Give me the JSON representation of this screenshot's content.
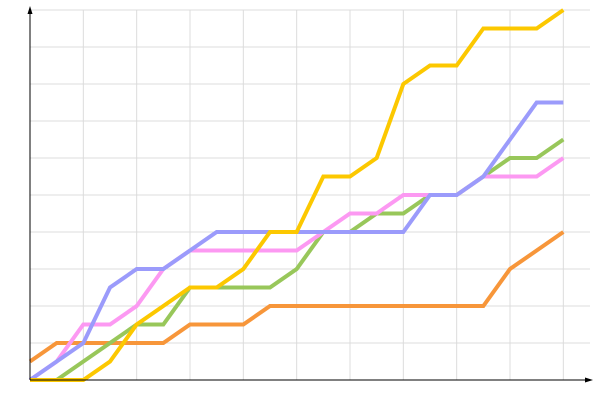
{
  "chart_data": {
    "type": "line",
    "x": [
      0,
      1,
      2,
      3,
      4,
      5,
      6,
      7,
      8,
      9,
      10,
      11,
      12,
      13,
      14,
      15,
      16,
      17,
      18,
      19,
      20
    ],
    "series": [
      {
        "color": "#f7963a",
        "values": [
          0.5,
          1,
          1,
          1,
          1,
          1,
          1.5,
          1.5,
          1.5,
          2,
          2,
          2,
          2,
          2,
          2,
          2,
          2,
          2,
          3,
          3.5,
          4
        ]
      },
      {
        "color": "#98c75a",
        "values": [
          0,
          0,
          0.5,
          1,
          1.5,
          1.5,
          2.5,
          2.5,
          2.5,
          2.5,
          3,
          4,
          4,
          4.5,
          4.5,
          5,
          5,
          5.5,
          6,
          6,
          6.5
        ]
      },
      {
        "color": "#fc99f2",
        "values": [
          0,
          0.5,
          1.5,
          1.5,
          2,
          3,
          3.5,
          3.5,
          3.5,
          3.5,
          3.5,
          4,
          4.5,
          4.5,
          5,
          5,
          5,
          5.5,
          5.5,
          5.5,
          6
        ]
      },
      {
        "color": "#9b9bfb",
        "values": [
          0,
          0.5,
          1,
          2.5,
          3,
          3,
          3.5,
          4,
          4,
          4,
          4,
          4,
          4,
          4,
          4,
          5,
          5,
          5.5,
          6.5,
          7.5,
          7.5
        ]
      },
      {
        "color": "#fcc800",
        "values": [
          0,
          0,
          0,
          0.5,
          1.5,
          2,
          2.5,
          2.5,
          3,
          4,
          4,
          5.5,
          5.5,
          6,
          8,
          8.5,
          8.5,
          9.5,
          9.5,
          9.5,
          10
        ]
      }
    ],
    "xlim": [
      0,
      21
    ],
    "ylim": [
      0,
      10
    ],
    "xticks": [
      0,
      2,
      4,
      6,
      8,
      10,
      12,
      14,
      16,
      18,
      20
    ],
    "yticks": [
      0,
      1,
      2,
      3,
      4,
      5,
      6,
      7,
      8,
      9,
      10
    ],
    "grid": true
  }
}
